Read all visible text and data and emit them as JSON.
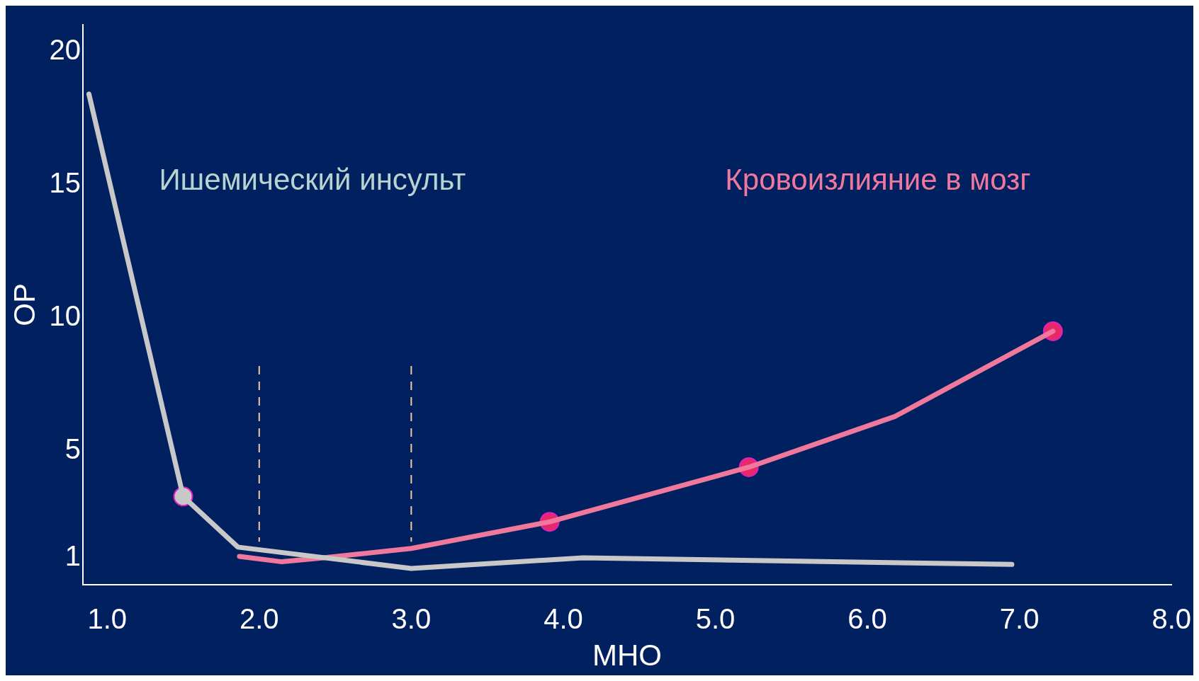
{
  "chart_data": {
    "type": "line",
    "xlabel": "МНО",
    "ylabel": "ОР",
    "xlim": [
      0.84,
      8.0
    ],
    "ylim": [
      0,
      21
    ],
    "xticks": [
      {
        "value": 1,
        "label": "1.0"
      },
      {
        "value": 2,
        "label": "2.0"
      },
      {
        "value": 3,
        "label": "3.0"
      },
      {
        "value": 4,
        "label": "4.0"
      },
      {
        "value": 5,
        "label": "5.0"
      },
      {
        "value": 6,
        "label": "6.0"
      },
      {
        "value": 7,
        "label": "7.0"
      },
      {
        "value": 8,
        "label": "8.0"
      }
    ],
    "yticks": [
      1,
      5,
      10,
      15,
      20
    ],
    "grid": false,
    "legend": false,
    "line_style": "solid",
    "series": [
      {
        "name": "Ишемический инсульт",
        "color": "#c8c8c8",
        "x": [
          0.88,
          1.5,
          1.86,
          3.0,
          4.13,
          6.95
        ],
        "values": [
          18.4,
          3.3,
          1.4,
          0.6,
          1.0,
          0.75
        ]
      },
      {
        "name": "Кровоизлияние в мозг",
        "color": "#f0789c",
        "x": [
          1.87,
          2.15,
          2.42,
          3.0,
          3.91,
          5.22,
          6.18,
          7.22
        ],
        "values": [
          1.05,
          0.85,
          1.0,
          1.35,
          2.35,
          4.4,
          6.3,
          9.5
        ]
      },
      {
        "type": "scatter",
        "marker": "circle",
        "color": "#c8c8c8",
        "x": [
          1.5
        ],
        "values": [
          3.3
        ]
      },
      {
        "type": "scatter",
        "marker": "circle",
        "color": "#e8286a",
        "x": [
          3.91,
          5.22,
          7.22
        ],
        "values": [
          2.35,
          4.4,
          9.5
        ]
      }
    ],
    "ref_lines": [
      {
        "axis": "x",
        "value": 2,
        "color": "#f5c8a0",
        "line_style": "dashed"
      },
      {
        "axis": "x",
        "value": 3,
        "color": "#f5c8a0",
        "line_style": "dashed"
      }
    ]
  }
}
